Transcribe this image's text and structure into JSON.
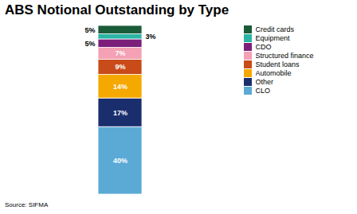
{
  "chart_data": {
    "type": "bar",
    "stacked": true,
    "title": "ABS Notional Outstanding by Type",
    "annotations": [
      "Source: SIFMA"
    ],
    "categories": [
      null
    ],
    "series": [
      {
        "name": "Credit cards",
        "color": "#1a5c38",
        "values": [
          5
        ],
        "value_labels": [
          "5%"
        ]
      },
      {
        "name": "Equipment",
        "color": "#2ab5a5",
        "values": [
          3
        ],
        "value_labels": [
          "3%"
        ]
      },
      {
        "name": "CDO",
        "color": "#7b1f7a",
        "values": [
          5
        ],
        "value_labels": [
          "5%"
        ]
      },
      {
        "name": "Structured finance",
        "color": "#f4a0b5",
        "values": [
          7
        ],
        "value_labels": [
          "7%"
        ]
      },
      {
        "name": "Student loans",
        "color": "#c94b1a",
        "values": [
          9
        ],
        "value_labels": [
          "9%"
        ]
      },
      {
        "name": "Automobile",
        "color": "#f5a800",
        "values": [
          14
        ],
        "value_labels": [
          "14%"
        ]
      },
      {
        "name": "Other",
        "color": "#1a2e6e",
        "values": [
          17
        ],
        "value_labels": [
          "17%"
        ]
      },
      {
        "name": "CLO",
        "color": "#5baad6",
        "values": [
          40
        ],
        "value_labels": [
          "40%"
        ]
      }
    ],
    "data_labels": true,
    "legend": "upper right",
    "tick_labels": false
  }
}
